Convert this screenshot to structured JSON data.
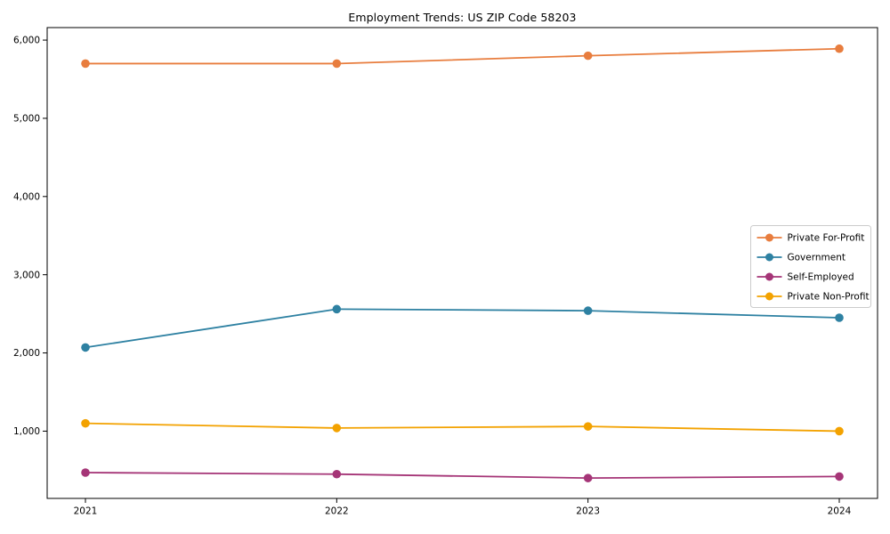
{
  "page": {
    "background": "#ffffff",
    "axis_color": "#000000",
    "legend_border_color": "#cccccc",
    "legend_background": "#ffffff"
  },
  "chart_data": {
    "type": "line",
    "title": "Employment Trends: US ZIP Code 58203",
    "x": [
      2021,
      2022,
      2023,
      2024
    ],
    "x_labels": [
      "2021",
      "2022",
      "2023",
      "2024"
    ],
    "series": [
      {
        "name": "Private For-Profit",
        "color": "#e87d3e",
        "values": [
          5700,
          5700,
          5800,
          5890
        ]
      },
      {
        "name": "Government",
        "color": "#2e81a2",
        "values": [
          2070,
          2560,
          2540,
          2450
        ]
      },
      {
        "name": "Self-Employed",
        "color": "#a53577",
        "values": [
          470,
          450,
          400,
          420
        ]
      },
      {
        "name": "Private Non-Profit",
        "color": "#f3a200",
        "values": [
          1100,
          1040,
          1060,
          1000
        ]
      }
    ],
    "yticks": [
      1000,
      2000,
      3000,
      4000,
      5000,
      6000
    ],
    "ytick_labels": [
      "1,000",
      "2,000",
      "3,000",
      "4,000",
      "5,000",
      "6,000"
    ],
    "ylim": [
      140,
      6160
    ],
    "grid": false,
    "legend_position": "center right",
    "marker": "circle"
  }
}
